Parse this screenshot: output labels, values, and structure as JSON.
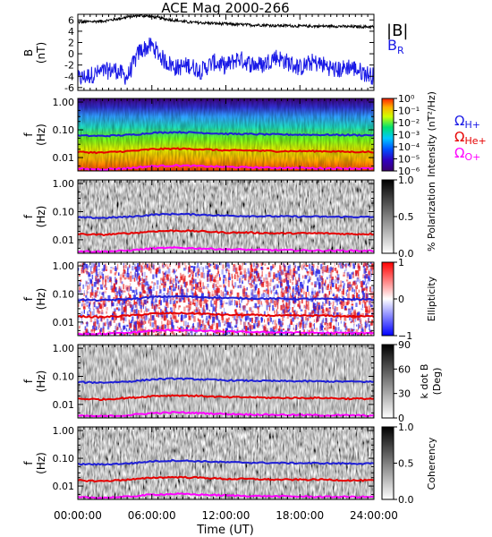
{
  "title": "ACE Mag 2000-266",
  "xlabel": "Time (UT)",
  "x_ticks": [
    "00:00:00",
    "06:00:00",
    "12:00:00",
    "18:00:00",
    "24:00:00"
  ],
  "freq_ticks": [
    "1.00",
    "0.10",
    "0.01"
  ],
  "colors": {
    "bmag": "#000000",
    "br": "#1a1ae6",
    "h": "#1f1fd6",
    "he": "#e60000",
    "o": "#ff00ff"
  },
  "legend_bmag": "|B|",
  "legend_br": "B",
  "legend_br_sub": "R",
  "ion_legend": [
    {
      "main": "Ω",
      "sub": "H+",
      "color": "#1a1ae6"
    },
    {
      "main": "Ω",
      "sub": "He+",
      "color": "#e60000"
    },
    {
      "main": "Ω",
      "sub": "O+",
      "color": "#ff00ff"
    }
  ],
  "chart_data": [
    {
      "type": "line",
      "ylabel": "B",
      "ylabel2": "(nT)",
      "y_ticks": [
        "6",
        "4",
        "2",
        "0",
        "-2",
        "-4",
        "-6"
      ],
      "ylim": [
        -6.5,
        7
      ],
      "x": [
        0,
        1,
        2,
        3,
        4,
        5,
        6,
        7,
        8,
        9,
        10,
        11,
        12,
        13,
        14,
        15,
        16,
        17,
        18,
        19,
        20,
        21,
        22,
        23,
        24
      ],
      "series": [
        {
          "name": "|B|",
          "values": [
            5.6,
            5.7,
            5.8,
            6.1,
            6.5,
            6.8,
            6.6,
            6.2,
            5.9,
            5.6,
            5.5,
            5.4,
            5.3,
            5.2,
            5.1,
            5.1,
            5.0,
            5.0,
            4.9,
            4.9,
            4.9,
            4.9,
            4.8,
            4.8,
            4.8
          ]
        },
        {
          "name": "B_R",
          "values": [
            -4.5,
            -3.8,
            -3.2,
            -2.8,
            -4.2,
            0.5,
            1.5,
            -1.2,
            -2.5,
            -2.0,
            -3.0,
            -1.5,
            -2.2,
            -0.8,
            -1.8,
            -2.0,
            -0.5,
            -1.5,
            -2.5,
            -1.5,
            -2.0,
            -3.0,
            -2.2,
            -3.2,
            -4.0
          ]
        }
      ]
    },
    {
      "type": "heatmap",
      "ylabel": "f",
      "ylabel2": "(Hz)",
      "colorbar_label": "Intensity (nT²/Hz)",
      "colorbar_ticks": [
        "10⁰",
        "10⁻¹",
        "10⁻²",
        "10⁻³",
        "10⁻⁴",
        "10⁻⁵",
        "10⁻⁶"
      ]
    },
    {
      "type": "heatmap",
      "ylabel": "f",
      "ylabel2": "(Hz)",
      "colorbar_label": "% Polarization",
      "colorbar_ticks": [
        "1.0",
        "0.5",
        "0.0"
      ]
    },
    {
      "type": "heatmap",
      "ylabel": "f",
      "ylabel2": "(Hz)",
      "colorbar_label": "Ellipticity",
      "colorbar_ticks": [
        "1",
        "0",
        "−1"
      ]
    },
    {
      "type": "heatmap",
      "ylabel": "f",
      "ylabel2": "(Hz)",
      "colorbar_label": "k dot B (Deg)",
      "colorbar_label1": "k dot B",
      "colorbar_label2": "(Deg)",
      "colorbar_ticks": [
        "90",
        "60",
        "30",
        "0"
      ]
    },
    {
      "type": "heatmap",
      "ylabel": "f",
      "ylabel2": "(Hz)",
      "colorbar_label": "Coherency",
      "colorbar_ticks": [
        "1.0",
        "0.5",
        "0.0"
      ]
    }
  ],
  "gyro_lines": {
    "x": [
      0,
      2,
      4,
      5,
      6,
      8,
      10,
      12,
      14,
      16,
      18,
      20,
      22,
      24
    ],
    "h": [
      0.062,
      0.06,
      0.065,
      0.07,
      0.078,
      0.083,
      0.078,
      0.072,
      0.07,
      0.068,
      0.067,
      0.066,
      0.065,
      0.064
    ],
    "he": [
      0.016,
      0.015,
      0.017,
      0.018,
      0.02,
      0.021,
      0.02,
      0.018,
      0.018,
      0.017,
      0.017,
      0.017,
      0.016,
      0.016
    ],
    "o": [
      0.0039,
      0.0038,
      0.0041,
      0.0045,
      0.0049,
      0.0052,
      0.0049,
      0.0046,
      0.0044,
      0.0043,
      0.0042,
      0.0041,
      0.0041,
      0.004
    ]
  }
}
